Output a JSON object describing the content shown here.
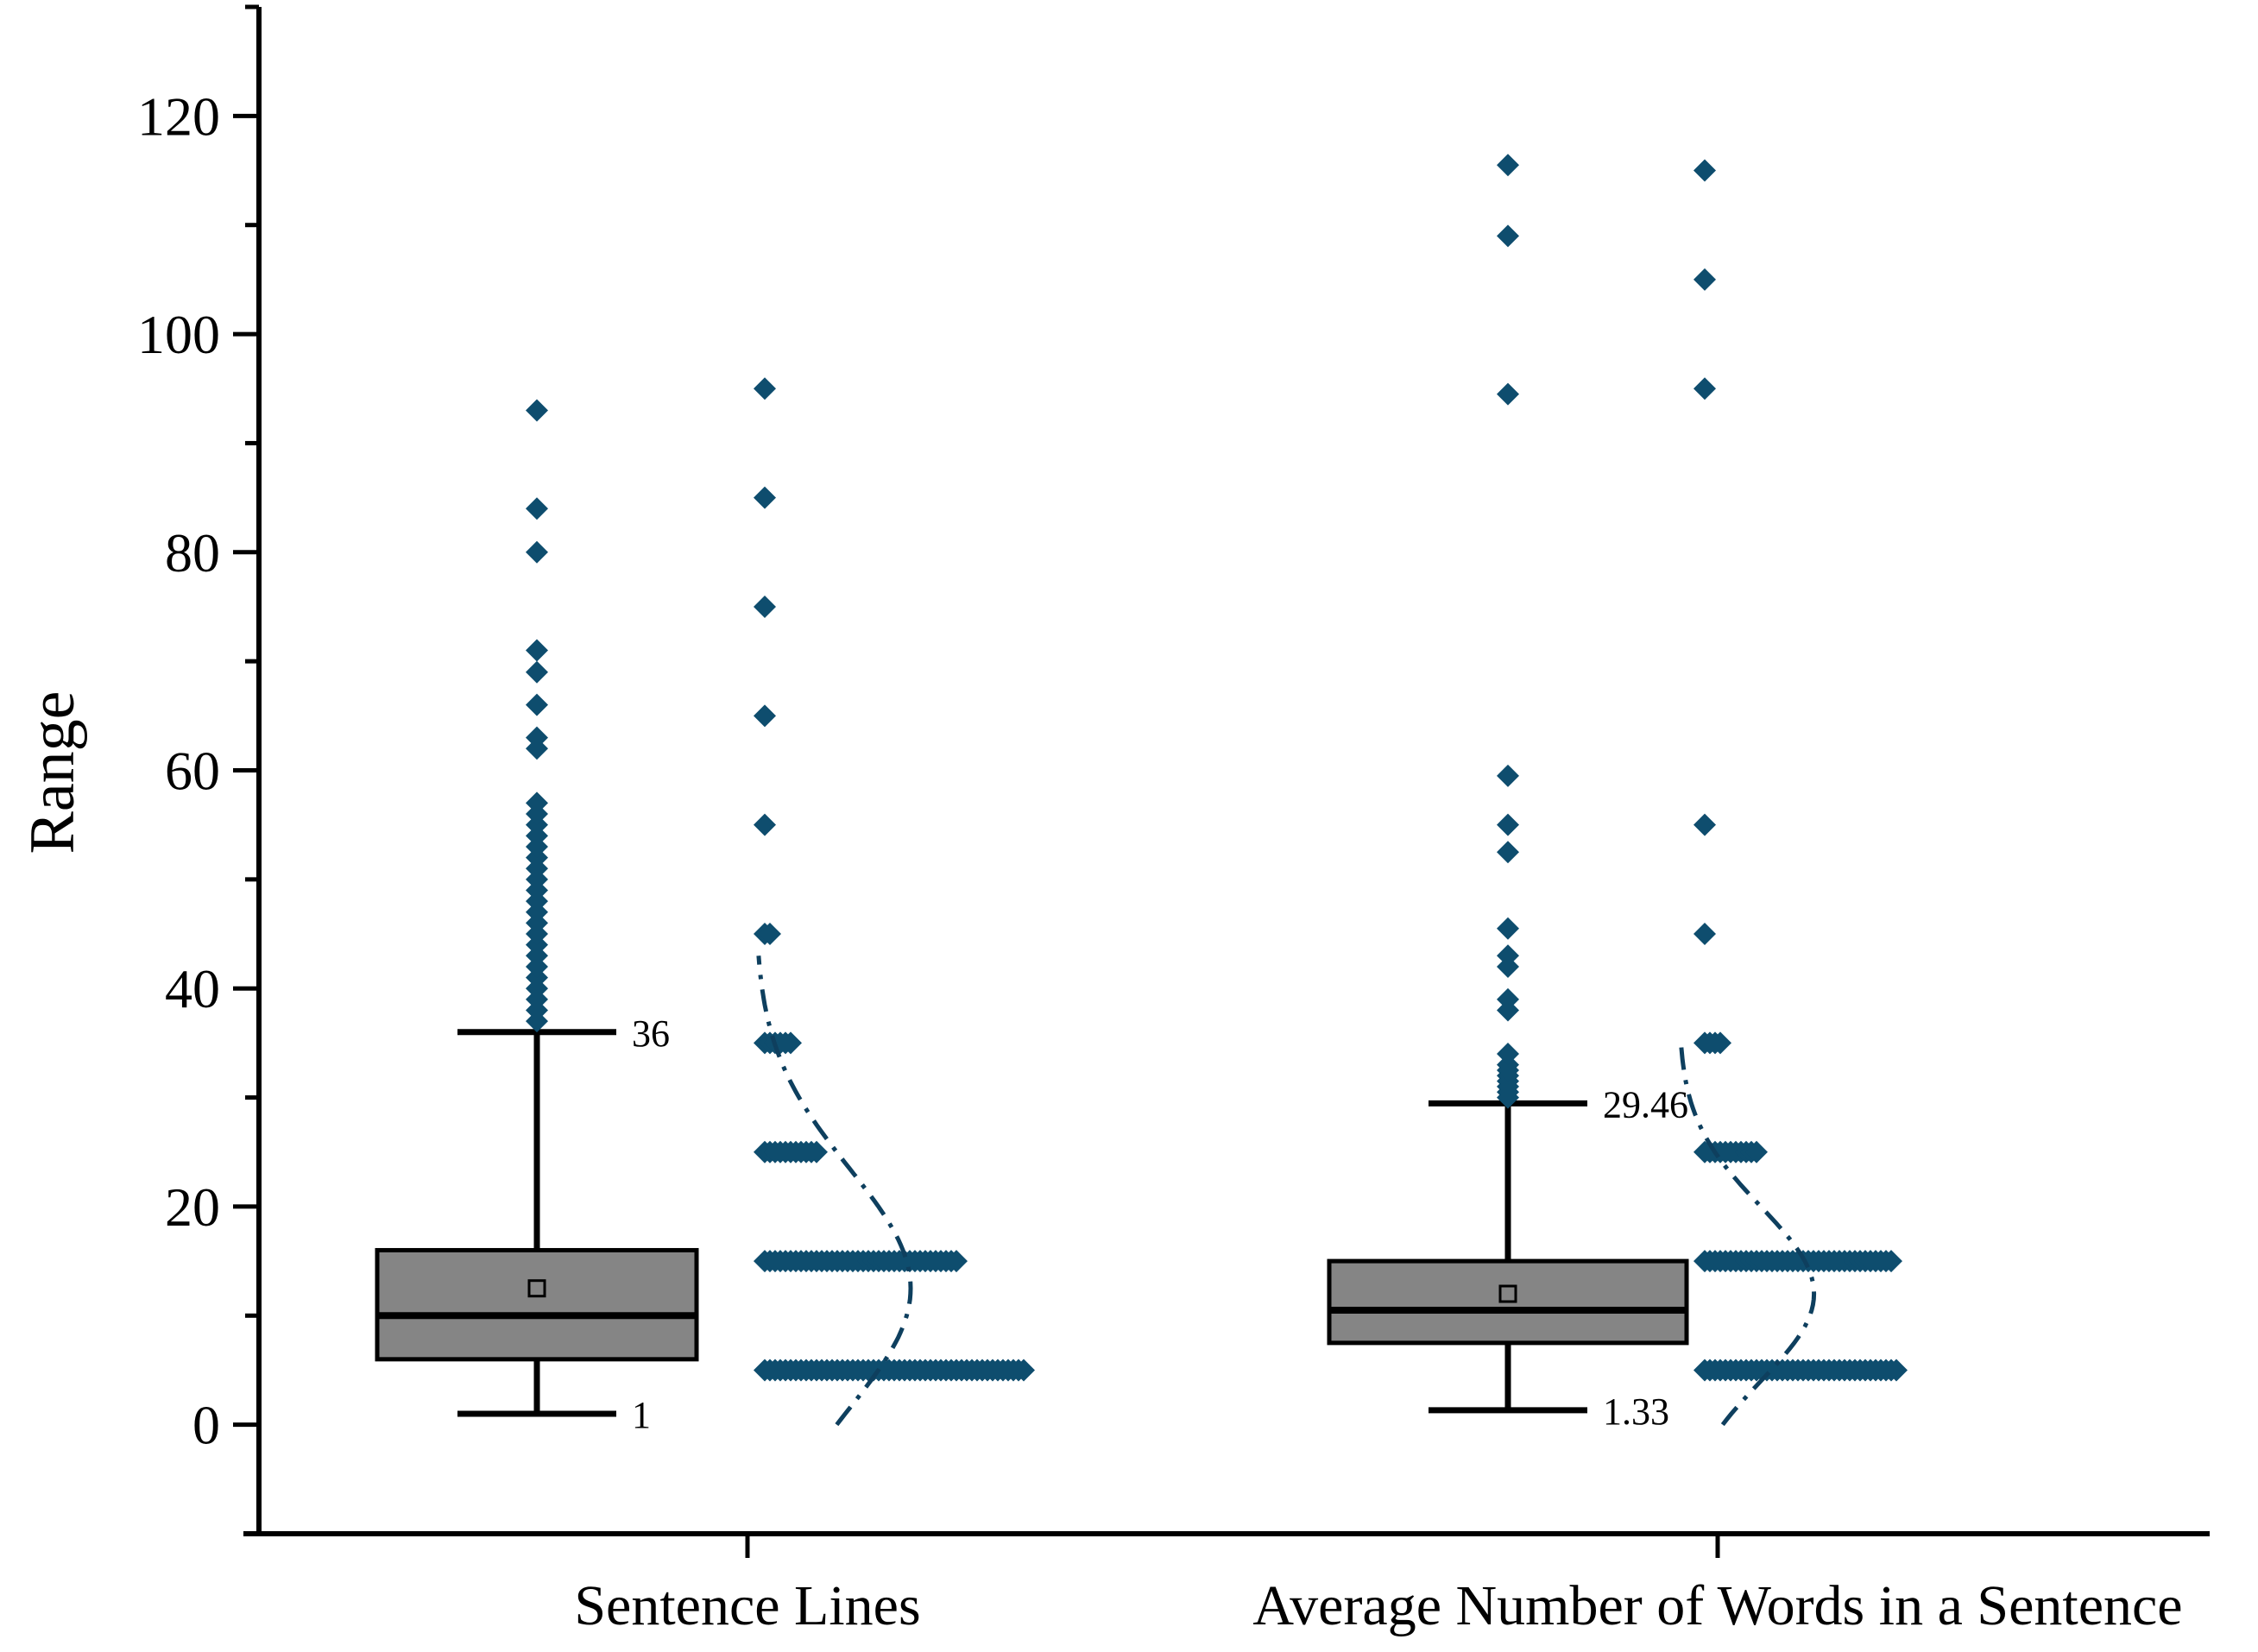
{
  "chart_data": {
    "type": "box",
    "ylabel": "Range",
    "xlabel": "",
    "ylim": [
      -10,
      130
    ],
    "yticks": [
      0,
      20,
      40,
      60,
      80,
      100,
      120
    ],
    "categories": [
      "Sentence Lines",
      "Average Number of Words in a Sentence"
    ],
    "colors": {
      "points": "#0e4d6e",
      "box": "#858585",
      "curve": "#0e3f5e"
    },
    "series": [
      {
        "category": "Sentence Lines",
        "whisker_low": 1,
        "q1": 6,
        "median": 10,
        "q3": 16,
        "whisker_high": 36,
        "mean": 12.5,
        "whisker_low_label": "1",
        "whisker_high_label": "36",
        "outliers": [
          37,
          38,
          39,
          40,
          41,
          42,
          43,
          44,
          45,
          46,
          47,
          48,
          49,
          50,
          51,
          52,
          53,
          54,
          55,
          56,
          57,
          62,
          63,
          66,
          69,
          71,
          80,
          84,
          93
        ],
        "histogram": [
          {
            "bin": 5,
            "extent": 12
          },
          {
            "bin": 15,
            "extent": 9
          },
          {
            "bin": 25,
            "extent": 2.5
          },
          {
            "bin": 35,
            "extent": 1.2
          },
          {
            "bin": 45,
            "extent": 0.4
          },
          {
            "bin": 55,
            "extent": 0
          },
          {
            "bin": 65,
            "extent": 0
          },
          {
            "bin": 75,
            "extent": 0
          },
          {
            "bin": 85,
            "extent": 0
          },
          {
            "bin": 95,
            "extent": 0
          }
        ],
        "distribution_curve": {
          "mean": 12.5,
          "sd": 11,
          "ymin": 0,
          "ymax": 43
        }
      },
      {
        "category": "Average Number of Words in a Sentence",
        "whisker_low": 1.33,
        "q1": 7.5,
        "median": 10.5,
        "q3": 15,
        "whisker_high": 29.46,
        "mean": 12,
        "whisker_low_label": "1.33",
        "whisker_high_label": "29.46",
        "outliers": [
          30,
          30.5,
          31,
          31.5,
          32,
          32.5,
          33,
          34,
          38,
          39,
          42,
          43,
          45.5,
          52.5,
          55,
          59.5,
          94.5,
          109,
          115.5
        ],
        "histogram": [
          {
            "bin": 5,
            "extent": 9
          },
          {
            "bin": 15,
            "extent": 8.8
          },
          {
            "bin": 25,
            "extent": 2.5
          },
          {
            "bin": 35,
            "extent": 0.8
          },
          {
            "bin": 45,
            "extent": 0
          },
          {
            "bin": 55,
            "extent": 0
          },
          {
            "bin": 95,
            "extent": 0
          },
          {
            "bin": 105,
            "extent": 0
          },
          {
            "bin": 115,
            "extent": 0
          }
        ],
        "distribution_curve": {
          "mean": 12,
          "sd": 8,
          "ymin": 0,
          "ymax": 35
        }
      }
    ]
  }
}
